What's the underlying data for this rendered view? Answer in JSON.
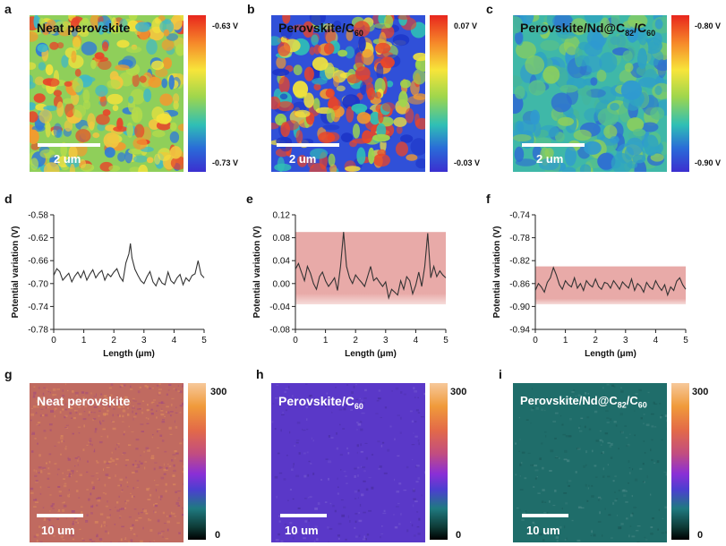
{
  "kpfm": [
    {
      "label": "a",
      "title": "Neat  perovskite",
      "title_sub": "",
      "title_tail": "",
      "scalebar": "2 um",
      "cbar_top": "-0.63 V",
      "cbar_bottom": "-0.73 V",
      "style": "mixed",
      "title_light": false
    },
    {
      "label": "b",
      "title": "Perovskite/C",
      "title_sub": "60",
      "title_tail": "",
      "scalebar": "2 um",
      "cbar_top": "0.07 V",
      "cbar_bottom": "-0.03 V",
      "style": "blotchy",
      "title_light": false
    },
    {
      "label": "c",
      "title": "Perovskite/Nd@C",
      "title_sub": "82",
      "title_tail": "/C",
      "title_sub2": "60",
      "scalebar": "2 um",
      "cbar_top": "-0.80 V",
      "cbar_bottom": "-0.90 V",
      "style": "smooth",
      "title_light": false
    }
  ],
  "pl": [
    {
      "label": "g",
      "title": "Neat perovskite",
      "title_sub": "",
      "title_tail": "",
      "scalebar": "10 um",
      "cbar_top": "300",
      "cbar_bottom": "0",
      "color": "#c06a60"
    },
    {
      "label": "h",
      "title": "Perovskite/C",
      "title_sub": "60",
      "title_tail": "",
      "scalebar": "10 um",
      "cbar_top": "300",
      "cbar_bottom": "0",
      "color": "#5a38c8"
    },
    {
      "label": "i",
      "title": "Perovskite/Nd@C",
      "title_sub": "82",
      "title_tail": "/C",
      "title_sub2": "60",
      "scalebar": "10 um",
      "cbar_top": "300",
      "cbar_bottom": "0",
      "color": "#1f6d6a"
    }
  ],
  "chart_data": [
    {
      "type": "line",
      "label": "d",
      "xlabel": "Length (μm)",
      "ylabel": "Potential variation (V)",
      "xlim": [
        0,
        5
      ],
      "ylim": [
        -0.78,
        -0.58
      ],
      "xticks": [
        "0",
        "1",
        "2",
        "3",
        "4",
        "5"
      ],
      "yticks": [
        "-0.78",
        "-0.74",
        "-0.70",
        "-0.66",
        "-0.62",
        "-0.58"
      ],
      "band": null,
      "series": [
        {
          "x": [
            0,
            0.1,
            0.2,
            0.3,
            0.4,
            0.5,
            0.6,
            0.7,
            0.8,
            0.9,
            1.0,
            1.1,
            1.2,
            1.3,
            1.4,
            1.5,
            1.6,
            1.7,
            1.8,
            1.9,
            2.0,
            2.1,
            2.2,
            2.3,
            2.4,
            2.5,
            2.55,
            2.6,
            2.7,
            2.8,
            2.9,
            3.0,
            3.1,
            3.2,
            3.3,
            3.4,
            3.5,
            3.6,
            3.7,
            3.8,
            3.9,
            4.0,
            4.1,
            4.2,
            4.3,
            4.4,
            4.5,
            4.6,
            4.7,
            4.8,
            4.9,
            5.0
          ],
          "y": [
            -0.686,
            -0.674,
            -0.679,
            -0.694,
            -0.688,
            -0.682,
            -0.697,
            -0.687,
            -0.68,
            -0.69,
            -0.678,
            -0.694,
            -0.684,
            -0.676,
            -0.69,
            -0.682,
            -0.677,
            -0.694,
            -0.683,
            -0.688,
            -0.68,
            -0.674,
            -0.688,
            -0.696,
            -0.664,
            -0.648,
            -0.63,
            -0.655,
            -0.675,
            -0.686,
            -0.695,
            -0.7,
            -0.688,
            -0.679,
            -0.697,
            -0.704,
            -0.69,
            -0.699,
            -0.702,
            -0.68,
            -0.695,
            -0.7,
            -0.69,
            -0.684,
            -0.702,
            -0.69,
            -0.696,
            -0.686,
            -0.683,
            -0.66,
            -0.684,
            -0.69
          ]
        }
      ]
    },
    {
      "type": "line",
      "label": "e",
      "xlabel": "Length (μm)",
      "ylabel": "Potential variation (V)",
      "xlim": [
        0,
        5
      ],
      "ylim": [
        -0.08,
        0.12
      ],
      "xticks": [
        "0",
        "1",
        "2",
        "3",
        "4",
        "5"
      ],
      "yticks": [
        "-0.08",
        "-0.04",
        "0.00",
        "0.04",
        "0.08",
        "0.12"
      ],
      "band": [
        -0.03,
        0.09
      ],
      "series": [
        {
          "x": [
            0,
            0.1,
            0.2,
            0.3,
            0.4,
            0.5,
            0.6,
            0.7,
            0.8,
            0.9,
            1.0,
            1.1,
            1.2,
            1.3,
            1.4,
            1.5,
            1.6,
            1.7,
            1.8,
            1.9,
            2.0,
            2.1,
            2.2,
            2.3,
            2.4,
            2.5,
            2.6,
            2.7,
            2.8,
            2.9,
            3.0,
            3.1,
            3.2,
            3.3,
            3.4,
            3.5,
            3.6,
            3.7,
            3.8,
            3.9,
            4.0,
            4.1,
            4.2,
            4.3,
            4.4,
            4.5,
            4.6,
            4.7,
            4.8,
            4.9,
            5.0
          ],
          "y": [
            0.025,
            0.035,
            0.02,
            0.005,
            0.03,
            0.018,
            0.0,
            -0.01,
            0.012,
            0.02,
            0.005,
            -0.005,
            0.002,
            0.01,
            -0.012,
            0.03,
            0.09,
            0.03,
            0.01,
            0.0,
            0.015,
            0.008,
            0.002,
            -0.005,
            0.012,
            0.03,
            0.005,
            0.01,
            0.002,
            -0.005,
            0.003,
            -0.025,
            -0.01,
            -0.015,
            -0.02,
            0.005,
            -0.01,
            0.012,
            0.005,
            -0.018,
            -0.003,
            0.02,
            -0.005,
            0.03,
            0.088,
            0.01,
            0.03,
            0.012,
            0.022,
            0.015,
            0.01
          ]
        }
      ]
    },
    {
      "type": "line",
      "label": "f",
      "xlabel": "Length (μm)",
      "ylabel": "Potential variation (V)",
      "xlim": [
        0,
        5
      ],
      "ylim": [
        -0.94,
        -0.74
      ],
      "xticks": [
        "0",
        "1",
        "2",
        "3",
        "4",
        "5"
      ],
      "yticks": [
        "-0.94",
        "-0.90",
        "-0.86",
        "-0.82",
        "-0.78",
        "-0.74"
      ],
      "band": [
        -0.89,
        -0.83
      ],
      "series": [
        {
          "x": [
            0,
            0.1,
            0.2,
            0.3,
            0.4,
            0.5,
            0.6,
            0.7,
            0.8,
            0.9,
            1.0,
            1.1,
            1.2,
            1.3,
            1.4,
            1.5,
            1.6,
            1.7,
            1.8,
            1.9,
            2.0,
            2.1,
            2.2,
            2.3,
            2.4,
            2.5,
            2.6,
            2.7,
            2.8,
            2.9,
            3.0,
            3.1,
            3.2,
            3.3,
            3.4,
            3.5,
            3.6,
            3.7,
            3.8,
            3.9,
            4.0,
            4.1,
            4.2,
            4.3,
            4.4,
            4.5,
            4.6,
            4.7,
            4.8,
            4.9,
            5.0
          ],
          "y": [
            -0.872,
            -0.86,
            -0.866,
            -0.875,
            -0.858,
            -0.85,
            -0.832,
            -0.845,
            -0.862,
            -0.87,
            -0.855,
            -0.862,
            -0.866,
            -0.85,
            -0.868,
            -0.86,
            -0.872,
            -0.855,
            -0.862,
            -0.866,
            -0.852,
            -0.865,
            -0.87,
            -0.858,
            -0.86,
            -0.868,
            -0.855,
            -0.862,
            -0.87,
            -0.857,
            -0.863,
            -0.868,
            -0.852,
            -0.872,
            -0.86,
            -0.865,
            -0.875,
            -0.858,
            -0.866,
            -0.87,
            -0.855,
            -0.865,
            -0.872,
            -0.862,
            -0.88,
            -0.866,
            -0.872,
            -0.856,
            -0.85,
            -0.862,
            -0.87
          ]
        }
      ]
    }
  ]
}
